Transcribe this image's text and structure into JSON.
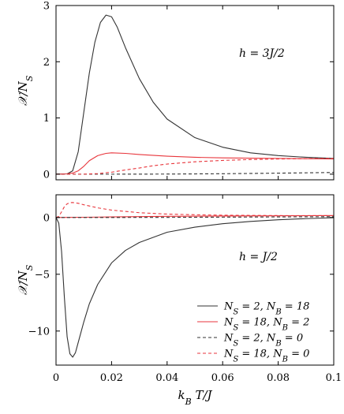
{
  "chart_data": [
    {
      "type": "line",
      "title": "",
      "xlabel": "",
      "ylabel": "𝒳/N_S",
      "annotation": "h = 3J/2",
      "xlim": [
        0,
        0.1
      ],
      "ylim": [
        -0.1,
        3.0
      ],
      "x_ticks": [
        0,
        0.02,
        0.04,
        0.06,
        0.08,
        0.1
      ],
      "y_ticks": [
        0,
        1,
        2,
        3
      ],
      "y_tick_labels": [
        "0",
        "1",
        "2",
        "3"
      ],
      "grid": false,
      "series": [
        {
          "name": "N_S = 2, N_B = 18",
          "color": "#333333",
          "dash": "solid",
          "points": [
            [
              0,
              0
            ],
            [
              0.004,
              0.005
            ],
            [
              0.006,
              0.06
            ],
            [
              0.008,
              0.4
            ],
            [
              0.01,
              1.1
            ],
            [
              0.012,
              1.8
            ],
            [
              0.014,
              2.35
            ],
            [
              0.016,
              2.7
            ],
            [
              0.018,
              2.83
            ],
            [
              0.02,
              2.8
            ],
            [
              0.022,
              2.62
            ],
            [
              0.025,
              2.25
            ],
            [
              0.03,
              1.7
            ],
            [
              0.035,
              1.28
            ],
            [
              0.04,
              0.98
            ],
            [
              0.05,
              0.65
            ],
            [
              0.06,
              0.48
            ],
            [
              0.07,
              0.38
            ],
            [
              0.08,
              0.33
            ],
            [
              0.09,
              0.3
            ],
            [
              0.1,
              0.28
            ]
          ]
        },
        {
          "name": "N_S = 18, N_B = 2",
          "color": "#e8363c",
          "dash": "solid",
          "points": [
            [
              0,
              0
            ],
            [
              0.004,
              0.005
            ],
            [
              0.006,
              0.02
            ],
            [
              0.008,
              0.06
            ],
            [
              0.01,
              0.14
            ],
            [
              0.012,
              0.24
            ],
            [
              0.015,
              0.33
            ],
            [
              0.018,
              0.37
            ],
            [
              0.02,
              0.38
            ],
            [
              0.025,
              0.37
            ],
            [
              0.03,
              0.35
            ],
            [
              0.04,
              0.32
            ],
            [
              0.05,
              0.3
            ],
            [
              0.06,
              0.29
            ],
            [
              0.08,
              0.28
            ],
            [
              0.1,
              0.27
            ]
          ]
        },
        {
          "name": "N_S = 2, N_B = 0",
          "color": "#333333",
          "dash": "dashed",
          "points": [
            [
              0,
              0
            ],
            [
              0.02,
              0.0
            ],
            [
              0.04,
              0.002
            ],
            [
              0.06,
              0.008
            ],
            [
              0.08,
              0.018
            ],
            [
              0.1,
              0.03
            ]
          ]
        },
        {
          "name": "N_S = 18, N_B = 0",
          "color": "#e8363c",
          "dash": "dashed",
          "points": [
            [
              0,
              0
            ],
            [
              0.01,
              0.0
            ],
            [
              0.015,
              0.01
            ],
            [
              0.02,
              0.035
            ],
            [
              0.025,
              0.075
            ],
            [
              0.03,
              0.11
            ],
            [
              0.035,
              0.15
            ],
            [
              0.04,
              0.18
            ],
            [
              0.05,
              0.22
            ],
            [
              0.06,
              0.245
            ],
            [
              0.07,
              0.26
            ],
            [
              0.08,
              0.27
            ],
            [
              0.1,
              0.28
            ]
          ]
        }
      ]
    },
    {
      "type": "line",
      "title": "",
      "xlabel": "k_B T/J",
      "ylabel": "𝒳/N_S",
      "annotation": "h = J/2",
      "xlim": [
        0,
        0.1
      ],
      "ylim": [
        -13,
        2
      ],
      "x_ticks": [
        0,
        0.02,
        0.04,
        0.06,
        0.08,
        0.1
      ],
      "x_tick_labels": [
        "0",
        "0.02",
        "0.04",
        "0.06",
        "0.08",
        "0.1"
      ],
      "y_ticks": [
        -10,
        -5,
        0
      ],
      "y_tick_labels": [
        "−10",
        "−5",
        "0"
      ],
      "grid": false,
      "legend": "bottom-right",
      "series": [
        {
          "name": "N_S = 2, N_B = 18",
          "color": "#333333",
          "dash": "solid",
          "points": [
            [
              0,
              0
            ],
            [
              0.001,
              -0.5
            ],
            [
              0.002,
              -3
            ],
            [
              0.003,
              -7
            ],
            [
              0.004,
              -10.5
            ],
            [
              0.005,
              -12.0
            ],
            [
              0.006,
              -12.3
            ],
            [
              0.007,
              -11.9
            ],
            [
              0.008,
              -11.0
            ],
            [
              0.01,
              -9.2
            ],
            [
              0.012,
              -7.6
            ],
            [
              0.015,
              -5.9
            ],
            [
              0.02,
              -4.0
            ],
            [
              0.025,
              -2.9
            ],
            [
              0.03,
              -2.2
            ],
            [
              0.04,
              -1.3
            ],
            [
              0.05,
              -0.85
            ],
            [
              0.06,
              -0.55
            ],
            [
              0.07,
              -0.35
            ],
            [
              0.08,
              -0.2
            ],
            [
              0.09,
              -0.1
            ],
            [
              0.1,
              -0.02
            ]
          ]
        },
        {
          "name": "N_S = 18, N_B = 2",
          "color": "#e8363c",
          "dash": "solid",
          "points": [
            [
              0,
              0
            ],
            [
              0.004,
              0.005
            ],
            [
              0.01,
              0.02
            ],
            [
              0.02,
              0.05
            ],
            [
              0.04,
              0.1
            ],
            [
              0.06,
              0.13
            ],
            [
              0.08,
              0.15
            ],
            [
              0.1,
              0.17
            ]
          ]
        },
        {
          "name": "N_S = 2, N_B = 0",
          "color": "#333333",
          "dash": "dashed",
          "points": [
            [
              0,
              0
            ],
            [
              0.02,
              0.0
            ],
            [
              0.04,
              0.01
            ],
            [
              0.06,
              0.03
            ],
            [
              0.08,
              0.05
            ],
            [
              0.1,
              0.07
            ]
          ]
        },
        {
          "name": "N_S = 18, N_B = 0",
          "color": "#e8363c",
          "dash": "dashed",
          "points": [
            [
              0,
              0
            ],
            [
              0.001,
              0.1
            ],
            [
              0.002,
              0.5
            ],
            [
              0.003,
              0.95
            ],
            [
              0.004,
              1.2
            ],
            [
              0.005,
              1.3
            ],
            [
              0.006,
              1.32
            ],
            [
              0.008,
              1.25
            ],
            [
              0.01,
              1.12
            ],
            [
              0.015,
              0.85
            ],
            [
              0.02,
              0.65
            ],
            [
              0.03,
              0.42
            ],
            [
              0.04,
              0.3
            ],
            [
              0.05,
              0.24
            ],
            [
              0.06,
              0.2
            ],
            [
              0.08,
              0.17
            ],
            [
              0.1,
              0.16
            ]
          ]
        }
      ]
    }
  ]
}
